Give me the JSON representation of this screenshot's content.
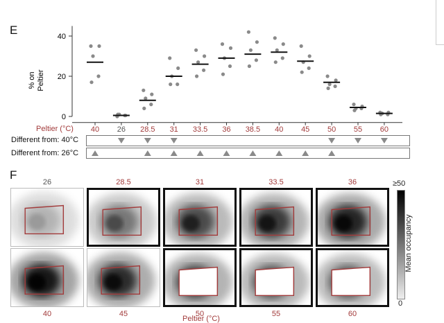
{
  "panel_e": {
    "letter": "E",
    "ylabel_line1": "% on",
    "ylabel_line2": "Peltier",
    "xlabel": "Peltier (°C)",
    "colors": {
      "dot": "#8a8a8a",
      "median": "#111111",
      "temp_red": "#a23b3b",
      "temp_gray": "#555555",
      "triangle": "#8a8a8a"
    }
  },
  "chart_data": {
    "type": "scatter",
    "xlabel": "Peltier (°C)",
    "ylabel": "% on Peltier",
    "ylim": [
      0,
      45
    ],
    "yticks": [
      0,
      20,
      40
    ],
    "categories": [
      "40",
      "26",
      "28.5",
      "31",
      "33.5",
      "36",
      "38.5",
      "40",
      "45",
      "50",
      "55",
      "60"
    ],
    "reference_category": [
      false,
      true,
      false,
      false,
      false,
      false,
      false,
      false,
      false,
      false,
      false,
      false
    ],
    "medians": [
      27,
      0.5,
      8,
      20,
      26,
      29,
      31,
      32,
      27.5,
      17,
      4.5,
      1.5
    ],
    "points": [
      [
        35,
        35,
        30,
        20,
        17
      ],
      [
        0,
        0.5,
        1,
        0.5,
        1
      ],
      [
        13,
        11,
        9,
        6,
        4
      ],
      [
        29,
        24,
        20,
        16,
        16
      ],
      [
        33,
        30,
        27,
        23,
        20
      ],
      [
        36,
        34,
        29,
        25,
        21
      ],
      [
        42,
        37,
        33,
        28,
        25
      ],
      [
        39,
        36,
        33,
        29,
        27
      ],
      [
        35,
        30,
        27,
        24,
        22
      ],
      [
        20,
        18,
        16,
        15,
        14
      ],
      [
        6,
        5,
        4,
        4,
        3
      ],
      [
        2,
        2,
        1.5,
        1,
        1
      ]
    ]
  },
  "diff_rows": [
    {
      "label": "Different from: 40°C",
      "direction": "down",
      "marks": [
        false,
        true,
        true,
        true,
        false,
        false,
        false,
        false,
        false,
        true,
        true,
        true
      ]
    },
    {
      "label": "Different from: 26°C",
      "direction": "up",
      "marks": [
        true,
        false,
        true,
        true,
        true,
        true,
        true,
        true,
        true,
        true,
        false,
        false
      ]
    }
  ],
  "panel_f": {
    "letter": "F",
    "xlabel": "Peltier (°C)",
    "colorbar_top": "≥50",
    "colorbar_bottom": "0",
    "colorbar_label": "Mean occupancy",
    "top_row": [
      {
        "label": "26",
        "significant": false,
        "label_color": "gray",
        "intensity": 0.05
      },
      {
        "label": "28.5",
        "significant": true,
        "label_color": "red",
        "intensity": 0.35
      },
      {
        "label": "31",
        "significant": true,
        "label_color": "red",
        "intensity": 0.6
      },
      {
        "label": "33.5",
        "significant": true,
        "label_color": "red",
        "intensity": 0.7
      },
      {
        "label": "36",
        "significant": true,
        "label_color": "red",
        "intensity": 0.85
      }
    ],
    "bottom_row": [
      {
        "label": "40",
        "significant": false,
        "label_color": "red",
        "intensity": 0.95,
        "hollow": false
      },
      {
        "label": "45",
        "significant": false,
        "label_color": "red",
        "intensity": 0.8,
        "hollow": false
      },
      {
        "label": "50",
        "significant": true,
        "label_color": "red",
        "intensity": 0.7,
        "hollow": true
      },
      {
        "label": "55",
        "significant": true,
        "label_color": "red",
        "intensity": 0.6,
        "hollow": true
      },
      {
        "label": "60",
        "significant": true,
        "label_color": "red",
        "intensity": 0.55,
        "hollow": true
      }
    ]
  }
}
